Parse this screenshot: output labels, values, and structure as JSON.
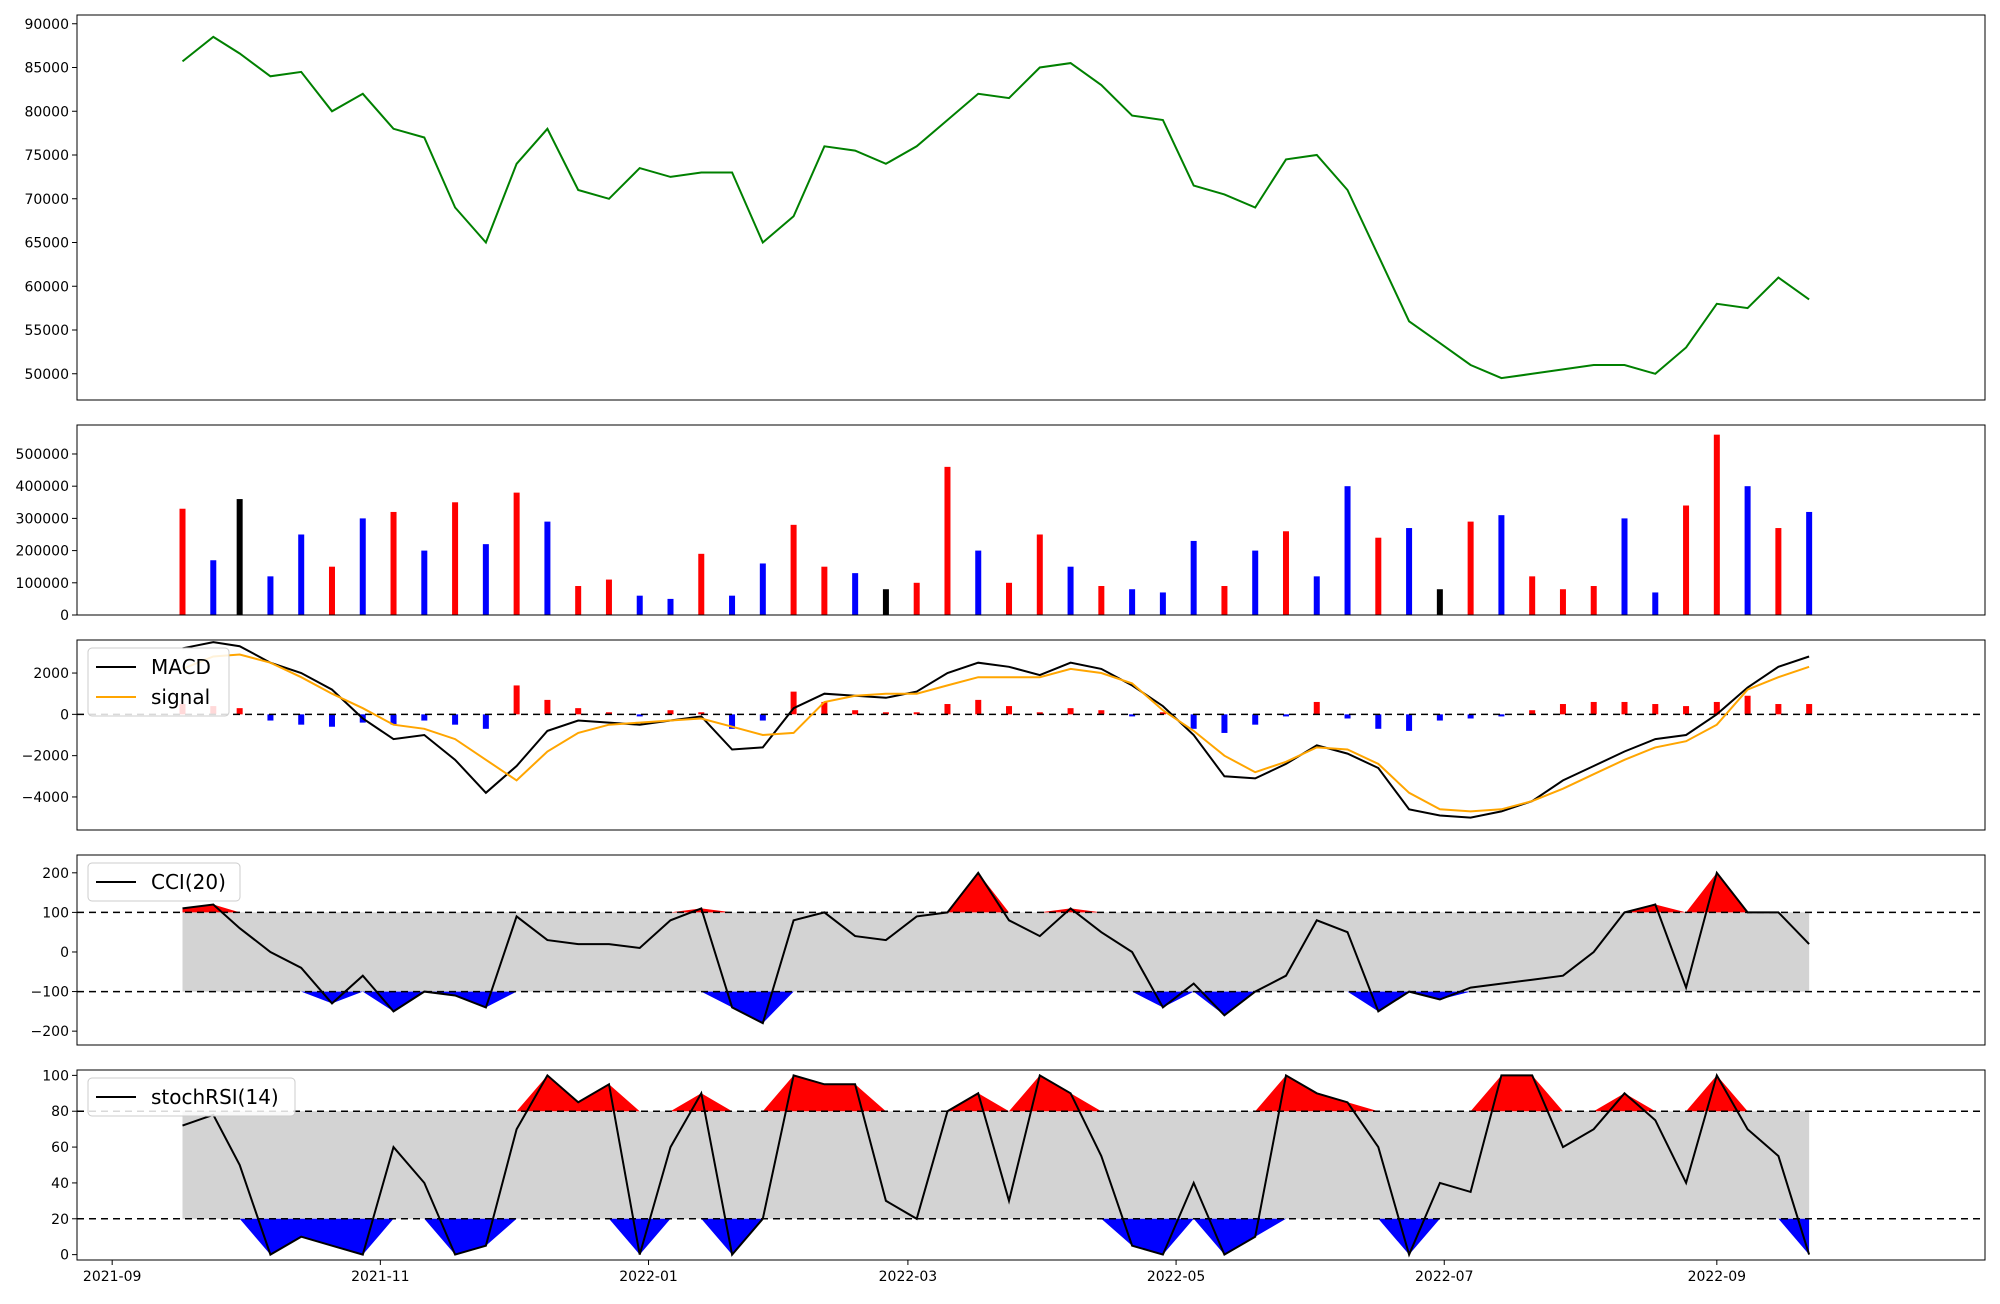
{
  "chart_data": [
    {
      "type": "line",
      "panel": "price",
      "ylim": [
        47000,
        91000
      ],
      "yticks": [
        "50000",
        "55000",
        "60000",
        "65000",
        "70000",
        "75000",
        "80000",
        "85000",
        "90000"
      ],
      "color": "#008000",
      "x": [
        "2021-09-17",
        "2021-09-24",
        "2021-09-30",
        "2021-10-07",
        "2021-10-14",
        "2021-10-21",
        "2021-10-28",
        "2021-11-04",
        "2021-11-11",
        "2021-11-18",
        "2021-11-25",
        "2021-12-02",
        "2021-12-09",
        "2021-12-16",
        "2021-12-23",
        "2021-12-30",
        "2022-01-06",
        "2022-01-13",
        "2022-01-20",
        "2022-01-27",
        "2022-02-03",
        "2022-02-10",
        "2022-02-17",
        "2022-02-24",
        "2022-03-03",
        "2022-03-10",
        "2022-03-17",
        "2022-03-24",
        "2022-03-31",
        "2022-04-07",
        "2022-04-14",
        "2022-04-21",
        "2022-04-28",
        "2022-05-05",
        "2022-05-12",
        "2022-05-19",
        "2022-05-26",
        "2022-06-02",
        "2022-06-09",
        "2022-06-16",
        "2022-06-23",
        "2022-06-30",
        "2022-07-07",
        "2022-07-14",
        "2022-07-21",
        "2022-07-28",
        "2022-08-04",
        "2022-08-11",
        "2022-08-18",
        "2022-08-25",
        "2022-09-01",
        "2022-09-08",
        "2022-09-15",
        "2022-09-22"
      ],
      "y": [
        85700,
        88500,
        86600,
        84000,
        84500,
        80000,
        82000,
        78000,
        77000,
        69000,
        65000,
        74000,
        78000,
        71000,
        70000,
        73500,
        72500,
        73000,
        73000,
        65000,
        68000,
        76000,
        75500,
        74000,
        76000,
        79000,
        82000,
        81500,
        85000,
        85500,
        83000,
        79500,
        79000,
        71500,
        70500,
        69000,
        74500,
        75000,
        71000,
        63500,
        56000,
        53500,
        51000,
        49500,
        50000,
        50500,
        51000,
        51000,
        50000,
        53000,
        58000,
        57500,
        61000,
        58500
      ]
    },
    {
      "type": "bar",
      "panel": "volume",
      "ylim": [
        0,
        590000
      ],
      "yticks": [
        "0",
        "100000",
        "200000",
        "300000",
        "400000",
        "500000"
      ],
      "colors": {
        "up": "#ff0000",
        "down": "#0000ff",
        "flat": "#000000"
      },
      "x": [
        "2021-09-17",
        "2021-09-24",
        "2021-09-30",
        "2021-10-07",
        "2021-10-14",
        "2021-10-21",
        "2021-10-28",
        "2021-11-04",
        "2021-11-11",
        "2021-11-18",
        "2021-11-25",
        "2021-12-02",
        "2021-12-09",
        "2021-12-16",
        "2021-12-23",
        "2021-12-30",
        "2022-01-06",
        "2022-01-13",
        "2022-01-20",
        "2022-01-27",
        "2022-02-03",
        "2022-02-10",
        "2022-02-17",
        "2022-02-24",
        "2022-03-03",
        "2022-03-10",
        "2022-03-17",
        "2022-03-24",
        "2022-03-31",
        "2022-04-07",
        "2022-04-14",
        "2022-04-21",
        "2022-04-28",
        "2022-05-05",
        "2022-05-12",
        "2022-05-19",
        "2022-05-26",
        "2022-06-02",
        "2022-06-09",
        "2022-06-16",
        "2022-06-23",
        "2022-06-30",
        "2022-07-07",
        "2022-07-14",
        "2022-07-21",
        "2022-07-28",
        "2022-08-04",
        "2022-08-11",
        "2022-08-18",
        "2022-08-25",
        "2022-09-01",
        "2022-09-08",
        "2022-09-15",
        "2022-09-22"
      ],
      "values": [
        330000,
        170000,
        360000,
        120000,
        250000,
        150000,
        300000,
        320000,
        200000,
        350000,
        220000,
        380000,
        290000,
        90000,
        110000,
        60000,
        50000,
        190000,
        60000,
        160000,
        280000,
        150000,
        130000,
        80000,
        100000,
        460000,
        200000,
        100000,
        250000,
        150000,
        90000,
        80000,
        70000,
        230000,
        90000,
        200000,
        260000,
        120000,
        400000,
        240000,
        270000,
        80000,
        290000,
        310000,
        120000,
        80000,
        90000,
        300000,
        70000,
        340000,
        560000,
        400000,
        270000,
        320000
      ],
      "direction": [
        "up",
        "down",
        "flat",
        "down",
        "down",
        "up",
        "down",
        "up",
        "down",
        "up",
        "down",
        "up",
        "down",
        "up",
        "up",
        "down",
        "down",
        "up",
        "down",
        "down",
        "up",
        "up",
        "down",
        "flat",
        "up",
        "up",
        "down",
        "up",
        "up",
        "down",
        "up",
        "down",
        "down",
        "down",
        "up",
        "down",
        "up",
        "down",
        "down",
        "up",
        "down",
        "flat",
        "up",
        "down",
        "up",
        "up",
        "up",
        "down",
        "down",
        "up",
        "up",
        "down",
        "up",
        "down"
      ]
    },
    {
      "type": "line",
      "panel": "macd",
      "ylim": [
        -5600,
        3600
      ],
      "yticks": [
        "−4000",
        "−2000",
        "0",
        "2000"
      ],
      "legend": [
        "MACD",
        "signal"
      ],
      "legend_position": "top-left",
      "series": [
        {
          "name": "MACD",
          "color": "#000000",
          "values": [
            3200,
            3500,
            3300,
            2500,
            2000,
            1200,
            -200,
            -1200,
            -1000,
            -2200,
            -3800,
            -2500,
            -800,
            -300,
            -400,
            -500,
            -300,
            -100,
            -1700,
            -1600,
            300,
            1000,
            900,
            800,
            1100,
            2000,
            2500,
            2300,
            1900,
            2500,
            2200,
            1400,
            400,
            -1000,
            -3000,
            -3100,
            -2400,
            -1500,
            -1900,
            -2600,
            -4600,
            -4900,
            -5000,
            -4700,
            -4200,
            -3200,
            -2500,
            -1800,
            -1200,
            -1000,
            0,
            1300,
            2300,
            2800
          ]
        },
        {
          "name": "signal",
          "color": "#ffa500",
          "values": [
            2200,
            2800,
            2900,
            2500,
            1800,
            1000,
            300,
            -500,
            -700,
            -1200,
            -2200,
            -3200,
            -1800,
            -900,
            -500,
            -400,
            -300,
            -200,
            -600,
            -1000,
            -900,
            600,
            900,
            1000,
            1000,
            1400,
            1800,
            1800,
            1800,
            2200,
            2000,
            1500,
            200,
            -800,
            -2000,
            -2800,
            -2300,
            -1600,
            -1700,
            -2400,
            -3800,
            -4600,
            -4700,
            -4600,
            -4200,
            -3600,
            -2900,
            -2200,
            -1600,
            -1300,
            -500,
            1200,
            1800,
            2300
          ]
        }
      ],
      "histogram": [
        500,
        400,
        300,
        -300,
        -500,
        -600,
        -400,
        -500,
        -300,
        -500,
        -700,
        1400,
        700,
        300,
        100,
        -100,
        200,
        100,
        -700,
        -300,
        1100,
        600,
        200,
        100,
        100,
        500,
        700,
        400,
        100,
        300,
        200,
        -100,
        100,
        -700,
        -900,
        -500,
        -100,
        600,
        -200,
        -700,
        -800,
        -300,
        -200,
        -100,
        200,
        500,
        600,
        600,
        500,
        400,
        600,
        900,
        500,
        500
      ]
    },
    {
      "type": "line",
      "panel": "cci",
      "ylim": [
        -235,
        245
      ],
      "yticks": [
        "−200",
        "−100",
        "0",
        "100",
        "200"
      ],
      "legend": [
        "CCI(20)"
      ],
      "legend_position": "top-left",
      "bands": [
        100,
        -100
      ],
      "series": [
        {
          "name": "CCI(20)",
          "color": "#000000",
          "values": [
            110,
            120,
            60,
            0,
            -40,
            -130,
            -60,
            -150,
            -100,
            -110,
            -140,
            90,
            30,
            20,
            20,
            10,
            80,
            110,
            -140,
            -180,
            80,
            100,
            40,
            30,
            90,
            100,
            200,
            80,
            40,
            110,
            50,
            0,
            -140,
            -80,
            -160,
            -100,
            -60,
            80,
            50,
            -150,
            -100,
            -120,
            -90,
            -80,
            -70,
            -60,
            0,
            100,
            120,
            -90,
            200,
            100,
            100,
            20
          ]
        }
      ]
    },
    {
      "type": "line",
      "panel": "stochrsi",
      "ylim": [
        -3,
        103
      ],
      "yticks": [
        "0",
        "20",
        "40",
        "60",
        "80",
        "100"
      ],
      "legend": [
        "stochRSI(14)"
      ],
      "legend_position": "top-left",
      "bands": [
        80,
        20
      ],
      "xticks": [
        "2021-09",
        "2021-11",
        "2022-01",
        "2022-03",
        "2022-05",
        "2022-07",
        "2022-09"
      ],
      "series": [
        {
          "name": "stochRSI(14)",
          "color": "#000000",
          "values": [
            72,
            78,
            50,
            0,
            10,
            5,
            0,
            60,
            40,
            0,
            5,
            70,
            100,
            85,
            95,
            0,
            60,
            90,
            0,
            20,
            100,
            95,
            95,
            30,
            20,
            80,
            90,
            30,
            100,
            90,
            55,
            5,
            0,
            40,
            0,
            10,
            100,
            90,
            85,
            60,
            0,
            40,
            35,
            100,
            100,
            60,
            70,
            90,
            75,
            40,
            100,
            70,
            55,
            0
          ]
        }
      ]
    }
  ]
}
